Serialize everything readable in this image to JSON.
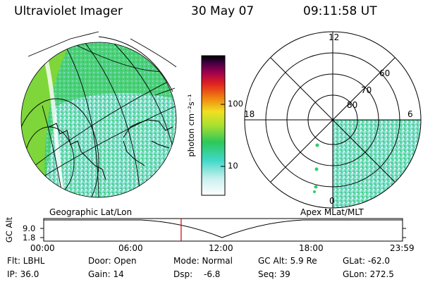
{
  "header": {
    "instrument": "Ultraviolet Imager",
    "date": "30 May 07",
    "time": "09:11:58 UT"
  },
  "colorbar": {
    "unit": "photon cm⁻²s⁻¹",
    "ticks": [
      "100",
      "10"
    ]
  },
  "left_map": {
    "caption": "Geographic Lat/Lon"
  },
  "right_map": {
    "caption": "Apex MLat/MLT",
    "mlt_labels": [
      "12",
      "18",
      "6",
      "0"
    ],
    "mlat_labels": [
      "60",
      "70",
      "80"
    ]
  },
  "altitude_plot": {
    "ylabel": "GC Alt",
    "y_ticks": [
      "9.0",
      "1.8"
    ],
    "x_ticks": [
      "00:00",
      "06:00",
      "12:00",
      "18:00",
      "23:59"
    ],
    "current_time_fraction": 0.383
  },
  "status": {
    "flt": "Flt: LBHL",
    "door": "Door: Open",
    "mode": "Mode: Normal",
    "gc_alt": "GC Alt: 5.9 Re",
    "glat": "GLat: -62.0",
    "ip": "IP: 36.0",
    "gain": "Gain: 14",
    "dsp_label": "Dsp:",
    "dsp_value": "-6.8",
    "seq": "Seq: 39",
    "glon": "GLon: 272.5"
  },
  "colors": {
    "image_fill_light": "#9ee8dc",
    "image_fill_green": "#2fcf6a",
    "limb_green": "#7ed63a",
    "marker_red": "#cc0000"
  }
}
